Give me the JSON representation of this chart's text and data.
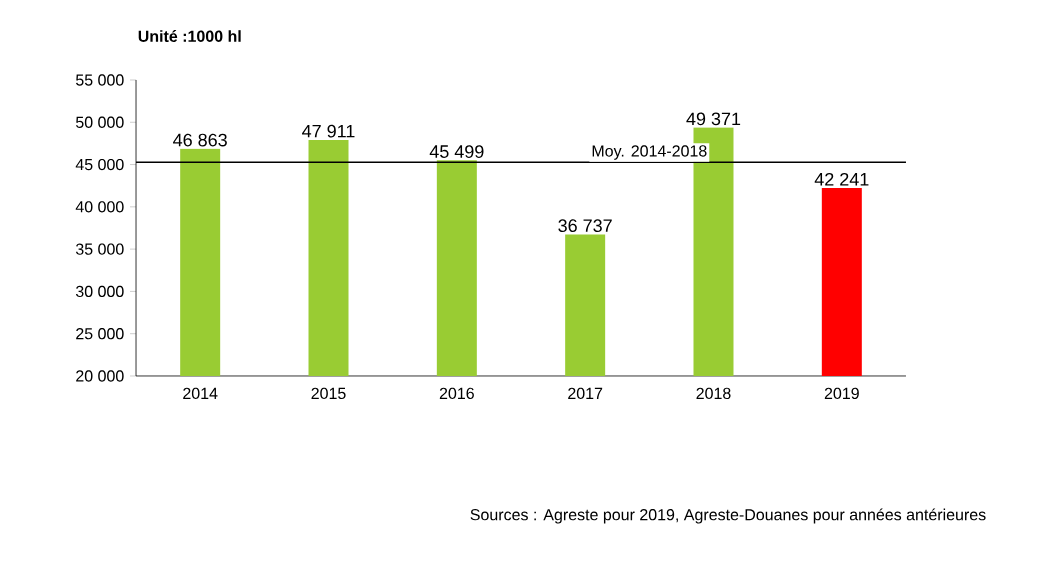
{
  "chart_data": {
    "type": "bar",
    "title": "Unité :1000 hl",
    "categories": [
      "2014",
      "2015",
      "2016",
      "2017",
      "2018",
      "2019"
    ],
    "values": [
      46863,
      47911,
      45499,
      36737,
      49371,
      42241
    ],
    "value_labels": [
      "46 863",
      "47 911",
      "45 499",
      "36 737",
      "49 371",
      "42 241"
    ],
    "colors": [
      "#99cc33",
      "#99cc33",
      "#99cc33",
      "#99cc33",
      "#99cc33",
      "#ff0000"
    ],
    "ylim": [
      20000,
      55000
    ],
    "yticks": [
      {
        "value": 20000,
        "label": "20 000"
      },
      {
        "value": 25000,
        "label": "25 000"
      },
      {
        "value": 30000,
        "label": "30 000"
      },
      {
        "value": 35000,
        "label": "35 000"
      },
      {
        "value": 40000,
        "label": "40 000"
      },
      {
        "value": 45000,
        "label": "45 000"
      },
      {
        "value": 50000,
        "label": "50 000"
      },
      {
        "value": 55000,
        "label": "55 000"
      }
    ],
    "ref_lines": [
      {
        "axis": "y",
        "value": 45276,
        "label": "Moy. 2014-2018",
        "color": "#000000"
      }
    ],
    "annotations": [
      "Sources : Agreste pour 2019, Agreste-Douanes pour années antérieures"
    ],
    "grid": false
  }
}
